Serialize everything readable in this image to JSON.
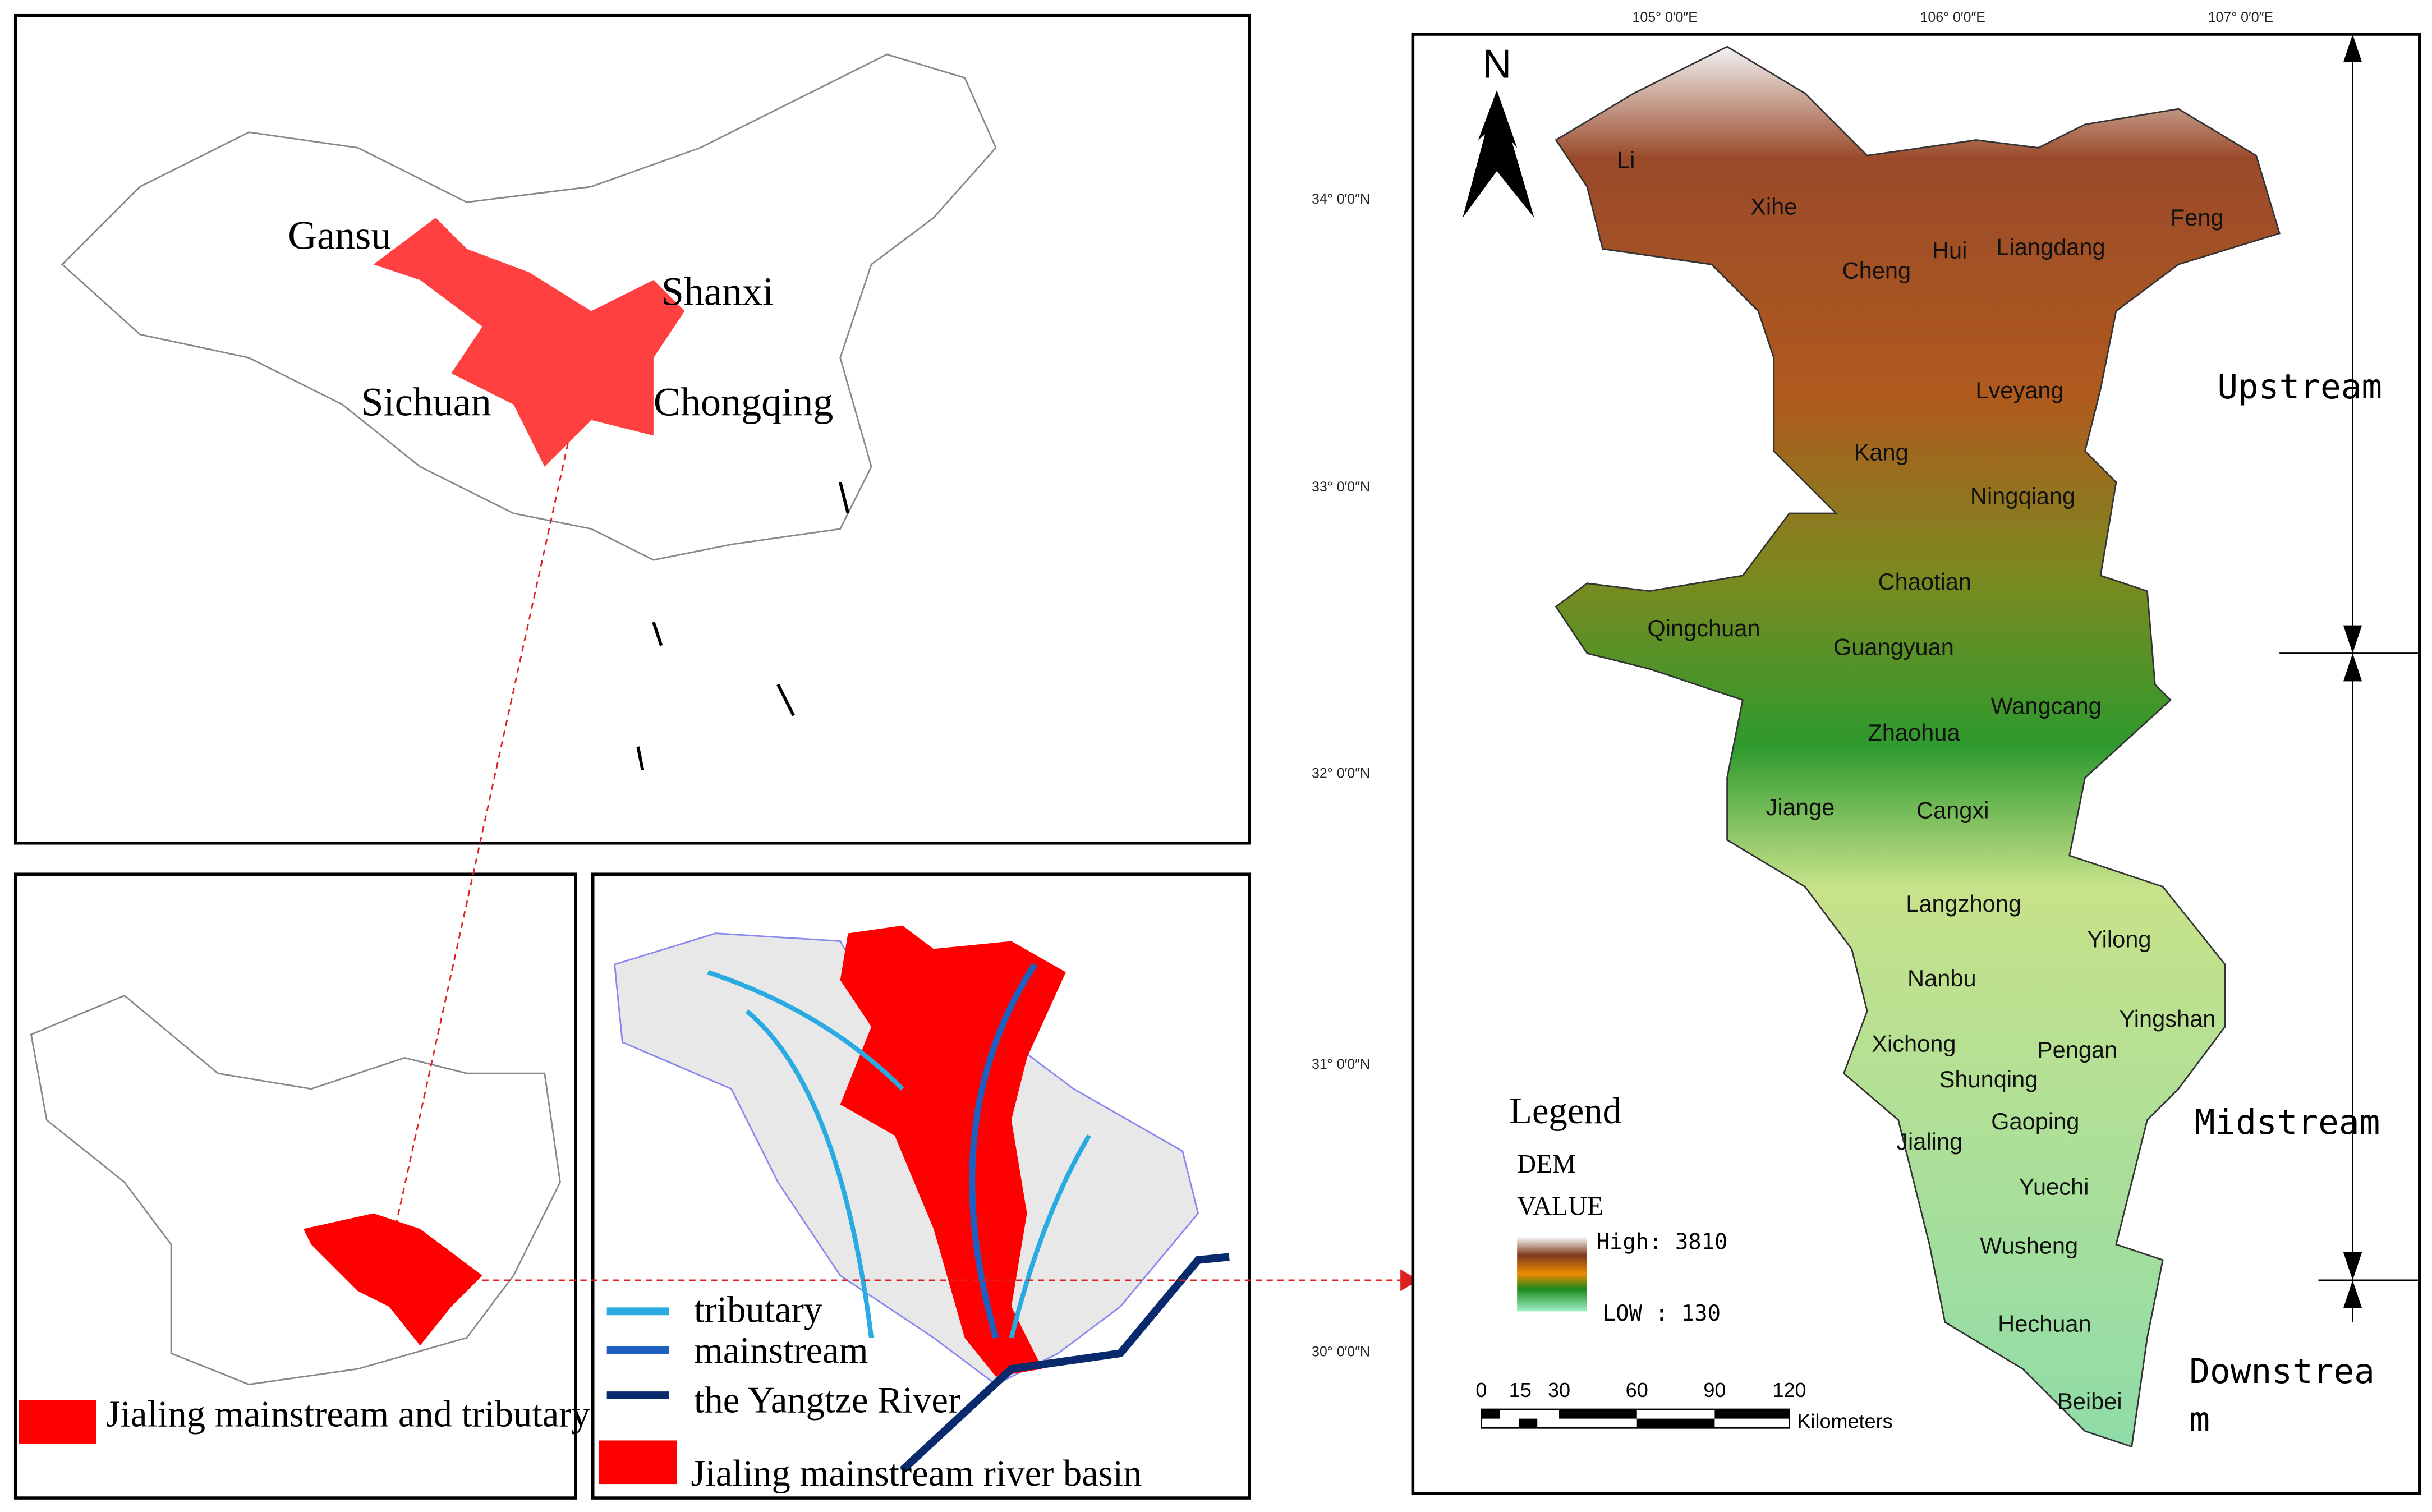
{
  "china_map": {
    "labels": [
      "Gansu",
      "Shanxi",
      "Sichuan",
      "Chongqing"
    ]
  },
  "basin_map": {
    "legend": "Jialing mainstream and tributary river basins"
  },
  "river_map": {
    "legend": [
      "tributary",
      "mainstream",
      "the Yangtze River",
      "Jialing mainstream river basin"
    ]
  },
  "dem_map": {
    "north": "N",
    "longitudes": [
      "105° 0′0″E",
      "106° 0′0″E",
      "107° 0′0″E"
    ],
    "latitudes": [
      "34° 0′0″N",
      "33° 0′0″N",
      "32° 0′0″N",
      "31° 0′0″N",
      "30° 0′0″N"
    ],
    "counties": [
      "Li",
      "Xihe",
      "Hui",
      "Liangdang",
      "Feng",
      "Cheng",
      "Lveyang",
      "Kang",
      "Ningqiang",
      "Chaotian",
      "Qingchuan",
      "Guangyuan",
      "Wangcang",
      "Zhaohua",
      "Jiange",
      "Cangxi",
      "Langzhong",
      "Yilong",
      "Nanbu",
      "Yingshan",
      "Xichong",
      "Pengan",
      "Shunqing",
      "Gaoping",
      "Jialing",
      "Yuechi",
      "Wusheng",
      "Hechuan",
      "Beibei"
    ],
    "legend": {
      "title": "Legend",
      "dem": "DEM",
      "value": "VALUE",
      "high": "High: 3810",
      "low": "LOW : 130"
    },
    "scale": {
      "ticks": [
        "0",
        "15",
        "30",
        "60",
        "90",
        "120"
      ],
      "unit": "Kilometers"
    },
    "reaches": [
      "Upstream",
      "Midstream",
      "Downstrea",
      "m"
    ]
  }
}
